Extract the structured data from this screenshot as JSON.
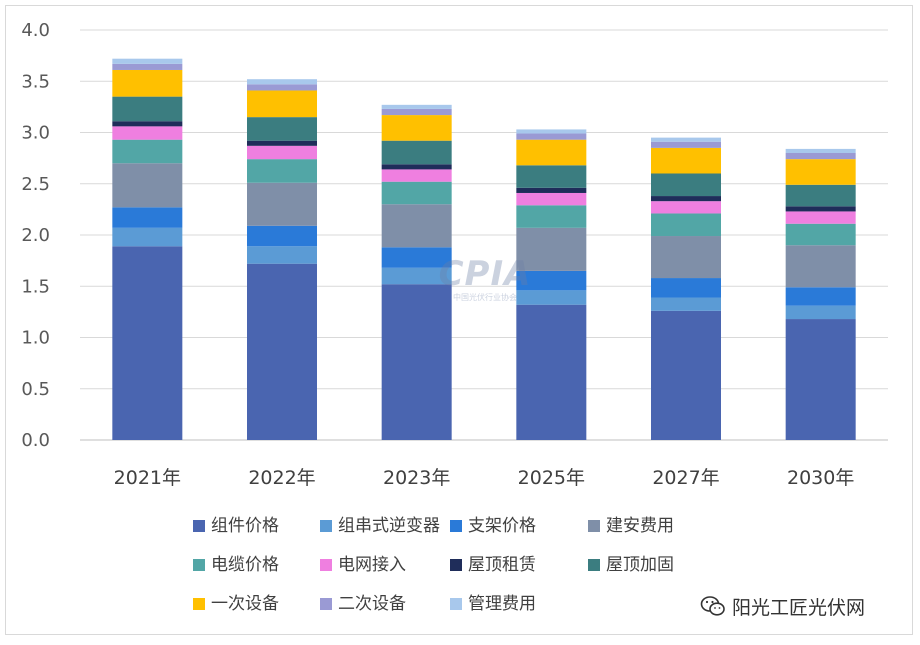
{
  "chart_data": {
    "type": "bar",
    "stacked": true,
    "title": "",
    "xlabel": "",
    "ylabel": "",
    "ylim": [
      0,
      4.0
    ],
    "yticks": [
      "0.0",
      "0.5",
      "1.0",
      "1.5",
      "2.0",
      "2.5",
      "3.0",
      "3.5",
      "4.0"
    ],
    "grid": true,
    "legend_position": "bottom",
    "categories": [
      "2021年",
      "2022年",
      "2023年",
      "2025年",
      "2027年",
      "2030年"
    ],
    "series": [
      {
        "name": "组件价格",
        "color": "#4a65b0",
        "values": [
          1.89,
          1.72,
          1.52,
          1.32,
          1.26,
          1.18
        ]
      },
      {
        "name": "组串式逆变器",
        "color": "#5b9bd5",
        "values": [
          0.18,
          0.17,
          0.16,
          0.14,
          0.13,
          0.13
        ]
      },
      {
        "name": "支架价格",
        "color": "#2a7ad8",
        "values": [
          0.2,
          0.2,
          0.2,
          0.19,
          0.19,
          0.18
        ]
      },
      {
        "name": "建安费用",
        "color": "#7f8fa8",
        "values": [
          0.43,
          0.42,
          0.42,
          0.42,
          0.41,
          0.41
        ]
      },
      {
        "name": "电缆价格",
        "color": "#52a6a6",
        "values": [
          0.23,
          0.23,
          0.22,
          0.22,
          0.22,
          0.21
        ]
      },
      {
        "name": "电网接入",
        "color": "#ef7fe0",
        "values": [
          0.13,
          0.13,
          0.12,
          0.12,
          0.12,
          0.12
        ]
      },
      {
        "name": "屋顶租赁",
        "color": "#1f2d5a",
        "values": [
          0.05,
          0.05,
          0.05,
          0.05,
          0.05,
          0.05
        ]
      },
      {
        "name": "屋顶加固",
        "color": "#3b7d80",
        "values": [
          0.24,
          0.23,
          0.23,
          0.22,
          0.22,
          0.21
        ]
      },
      {
        "name": "一次设备",
        "color": "#ffc000",
        "values": [
          0.26,
          0.26,
          0.25,
          0.25,
          0.25,
          0.25
        ]
      },
      {
        "name": "二次设备",
        "color": "#9a9ad4",
        "values": [
          0.06,
          0.06,
          0.06,
          0.06,
          0.06,
          0.06
        ]
      },
      {
        "name": "管理费用",
        "color": "#a8c8ec",
        "values": [
          0.05,
          0.05,
          0.04,
          0.04,
          0.04,
          0.04
        ]
      }
    ]
  },
  "watermark": {
    "logo": "CPIA",
    "subtitle": "中国光伏行业协会"
  },
  "brand": {
    "name": "阳光工匠光伏网",
    "icon": "wechat-icon"
  },
  "colors": {
    "grid": "#d9d9d9",
    "axis": "#bfbfbf",
    "text": "#404040"
  }
}
